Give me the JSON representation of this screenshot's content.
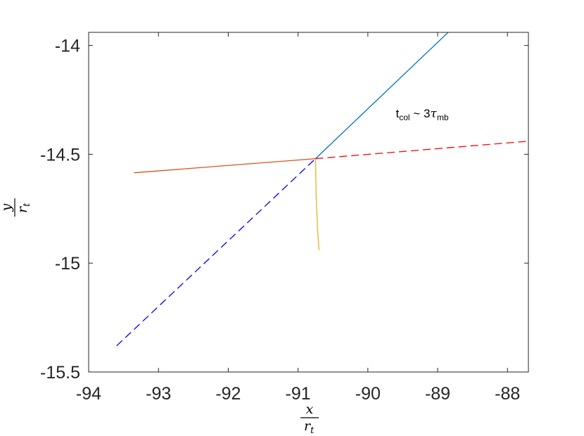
{
  "chart_data": {
    "type": "line",
    "title": "",
    "xlabel": {
      "num": "x",
      "den": "r",
      "den_sub": "t"
    },
    "ylabel": {
      "num": "y",
      "den": "r",
      "den_sub": "t"
    },
    "xlim": [
      -94,
      -87.7
    ],
    "ylim": [
      -15.5,
      -13.94
    ],
    "x_ticks": [
      -94,
      -93,
      -92,
      -91,
      -90,
      -89,
      -88
    ],
    "x_tick_labels": [
      "-94",
      "-93",
      "-92",
      "-91",
      "-90",
      "-89",
      "-88"
    ],
    "y_ticks": [
      -14,
      -14.5,
      -15,
      -15.5
    ],
    "y_tick_labels": [
      "-14",
      "-14.5",
      "-15",
      "-15.5"
    ],
    "grid": false,
    "annotation": {
      "base": "t",
      "base_sub": "col",
      "mid": " ~ 3",
      "tau": "τ",
      "tau_sub": "mb",
      "x": -89.6,
      "y": -14.33
    },
    "series": [
      {
        "color": "#0072BD",
        "style": "solid",
        "x": [
          -90.75,
          -88.85
        ],
        "y": [
          -14.52,
          -13.94
        ]
      },
      {
        "color": "#D95319",
        "style": "solid",
        "x": [
          -93.35,
          -90.75
        ],
        "y": [
          -14.585,
          -14.52
        ]
      },
      {
        "color": "#EDB120",
        "style": "solid",
        "x": [
          -90.75,
          -90.74,
          -90.72,
          -90.7
        ],
        "y": [
          -14.52,
          -14.7,
          -14.85,
          -14.94
        ]
      },
      {
        "color": "#FF0000",
        "style": "dashed",
        "x": [
          -90.75,
          -87.7
        ],
        "y": [
          -14.52,
          -14.44
        ]
      },
      {
        "color": "#0000FF",
        "style": "dashed",
        "x": [
          -93.6,
          -90.75
        ],
        "y": [
          -15.38,
          -14.52
        ]
      }
    ]
  }
}
